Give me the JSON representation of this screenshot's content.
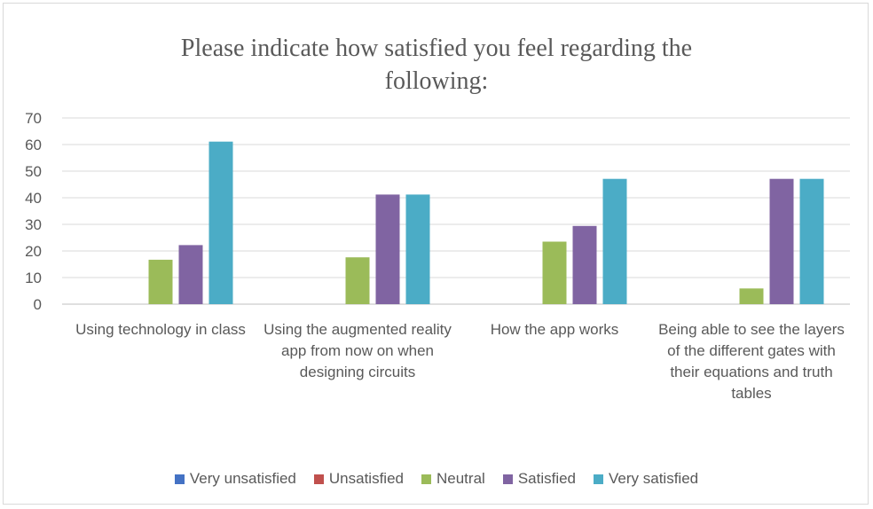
{
  "chart_data": {
    "type": "bar",
    "title": "Please indicate how satisfied you feel regarding the following:",
    "categories": [
      "Using technology in class",
      "Using the augmented reality app from now on when designing circuits",
      "How the app works",
      "Being able to see the layers of the different gates with their equations and truth tables"
    ],
    "series": [
      {
        "name": "Very unsatisfied",
        "color": "#4472c4",
        "values": [
          0,
          0,
          0,
          0
        ]
      },
      {
        "name": "Unsatisfied",
        "color": "#c0504d",
        "values": [
          0,
          0,
          0,
          0
        ]
      },
      {
        "name": "Neutral",
        "color": "#9bbb59",
        "values": [
          16.7,
          17.6,
          23.5,
          5.9
        ]
      },
      {
        "name": "Satisfied",
        "color": "#8064a2",
        "values": [
          22.2,
          41.2,
          29.4,
          47.1
        ]
      },
      {
        "name": "Very satisfied",
        "color": "#4bacc6",
        "values": [
          61.1,
          41.2,
          47.1,
          47.1
        ]
      }
    ],
    "ylim": [
      0,
      70
    ],
    "yticks": [
      0,
      10,
      20,
      30,
      40,
      50,
      60,
      70
    ],
    "grid": true,
    "legend": "bottom"
  }
}
